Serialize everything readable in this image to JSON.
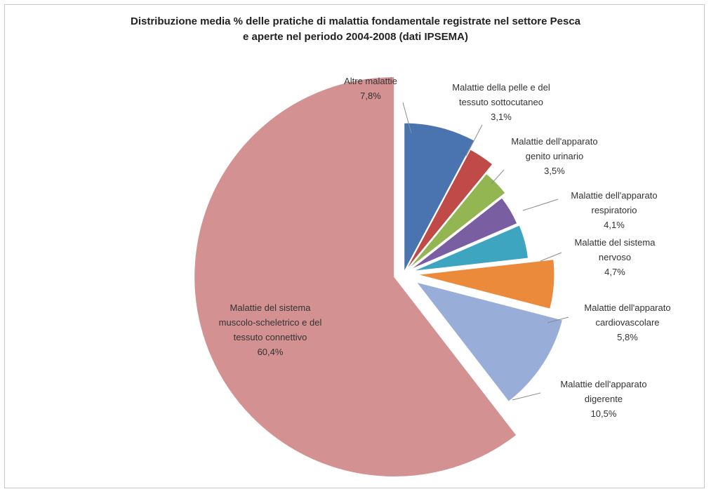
{
  "chart_data": {
    "type": "pie",
    "title": "Distribuzione media % delle pratiche di malattia fondamentale registrate nel settore Pesca e aperte nel periodo 2004-2008 (dati IPSEMA)",
    "title_lines": [
      "Distribuzione media % delle pratiche di malattia fondamentale registrate nel settore Pesca",
      "e aperte nel periodo 2004-2008 (dati IPSEMA)"
    ],
    "slices": [
      {
        "key": "altre",
        "label_lines": [
          "Altre malattie"
        ],
        "value": 7.8,
        "value_label": "7,8%",
        "color": "#4a74b0"
      },
      {
        "key": "pelle",
        "label_lines": [
          "Malattie della pelle e del",
          "tessuto sottocutaneo"
        ],
        "value": 3.1,
        "value_label": "3,1%",
        "color": "#bf4a47"
      },
      {
        "key": "genito",
        "label_lines": [
          "Malattie dell'apparato",
          "genito urinario"
        ],
        "value": 3.5,
        "value_label": "3,5%",
        "color": "#93b653"
      },
      {
        "key": "respiratorio",
        "label_lines": [
          "Malattie dell'apparato",
          "respiratorio"
        ],
        "value": 4.1,
        "value_label": "4,1%",
        "color": "#7a5ea2"
      },
      {
        "key": "nervoso",
        "label_lines": [
          "Malattie del sistema",
          "nervoso"
        ],
        "value": 4.7,
        "value_label": "4,7%",
        "color": "#3ea5c0"
      },
      {
        "key": "cardio",
        "label_lines": [
          "Malattie dell'apparato",
          "cardiovascolare"
        ],
        "value": 5.8,
        "value_label": "5,8%",
        "color": "#ec8a3c"
      },
      {
        "key": "digerente",
        "label_lines": [
          "Malattie dell'apparato",
          "digerente"
        ],
        "value": 10.5,
        "value_label": "10,5%",
        "color": "#98aed8"
      },
      {
        "key": "muscolo",
        "label_lines": [
          "Malattie del sistema",
          "muscolo-scheletrico e del",
          "tessuto connettivo"
        ],
        "value": 60.4,
        "value_label": "60,4%",
        "color": "#d39192"
      }
    ],
    "exploded": true,
    "start_angle": "12 o'clock",
    "direction": "clockwise"
  }
}
